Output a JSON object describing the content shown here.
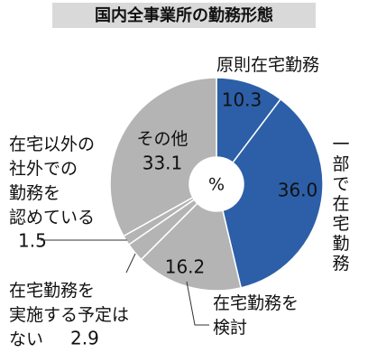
{
  "chart_data": {
    "type": "donut",
    "title": "国内全事業所の勤務形態",
    "center_label": "%",
    "categories": [
      "原則在宅勤務",
      "一部で在宅勤務",
      "在宅勤務を検討",
      "在宅勤務を実施する予定はない",
      "在宅以外の社外での勤務を認めている",
      "その他"
    ],
    "values": [
      10.3,
      36.0,
      16.2,
      2.9,
      1.5,
      33.1
    ],
    "value_labels": [
      "10.3",
      "36.0",
      "16.2",
      "2.9",
      "1.5",
      "33.1"
    ],
    "colors": [
      "#2c5fa8",
      "#2c5fa8",
      "#b4b4b4",
      "#b4b4b4",
      "#b4b4b4",
      "#b4b4b4"
    ]
  }
}
